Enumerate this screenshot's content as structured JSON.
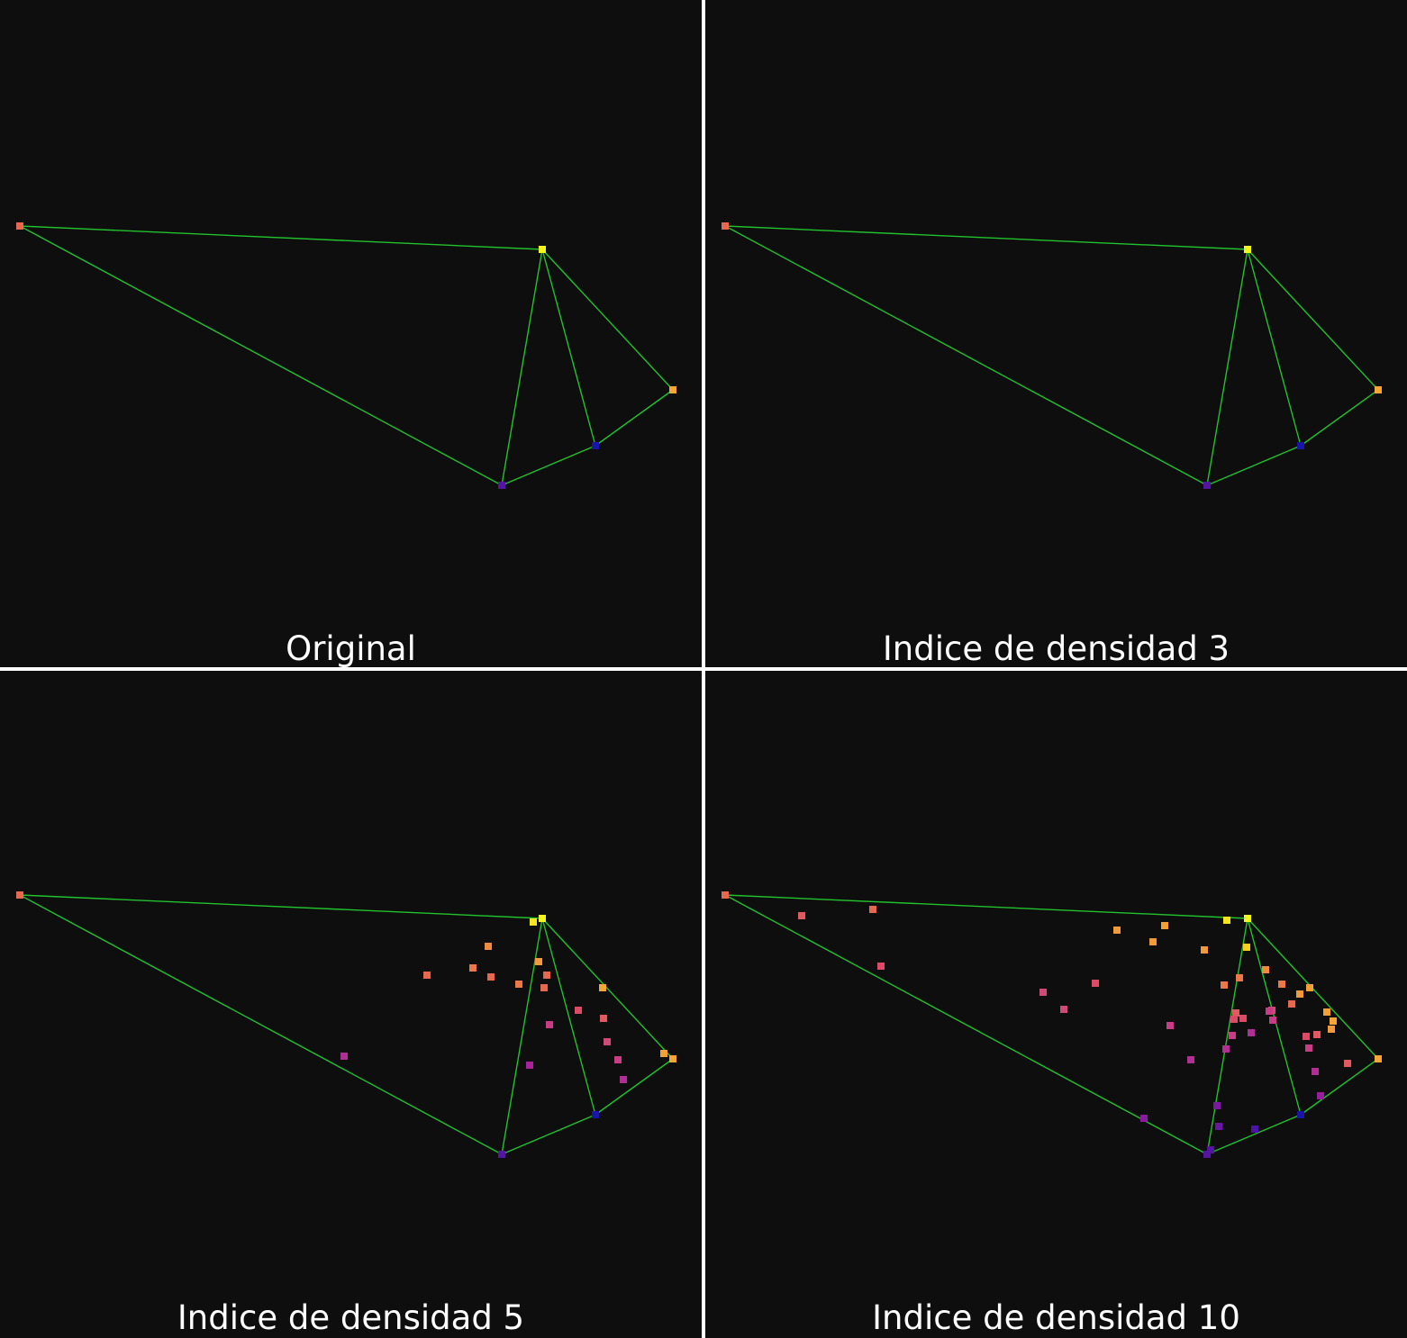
{
  "panels": [
    {
      "caption": "Original",
      "points": []
    },
    {
      "caption": "Indice de densidad 3",
      "points": []
    },
    {
      "caption": "Indice de densidad 5",
      "points": []
    },
    {
      "caption": "Indice de densidad 10",
      "points": []
    }
  ],
  "colors": {
    "background": "#0e0e0f",
    "edge": "#21c22b",
    "caption": "#ffffff"
  }
}
